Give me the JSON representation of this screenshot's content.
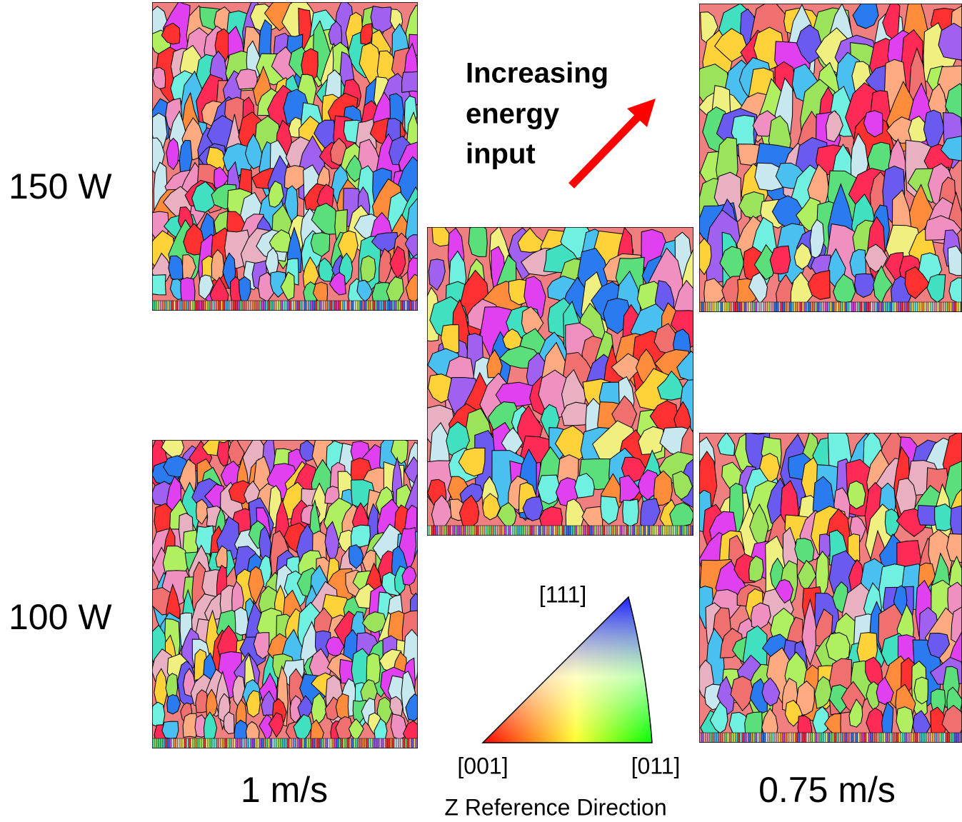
{
  "row_labels": [
    "150 W",
    "100 W"
  ],
  "column_labels": [
    "1 m/s",
    "0.75 m/s"
  ],
  "annotation": [
    "Increasing",
    "energy",
    "input"
  ],
  "ipf_legend": {
    "corners": [
      "[111]",
      "[001]",
      "[011]"
    ],
    "title": "Z Reference Direction"
  }
}
